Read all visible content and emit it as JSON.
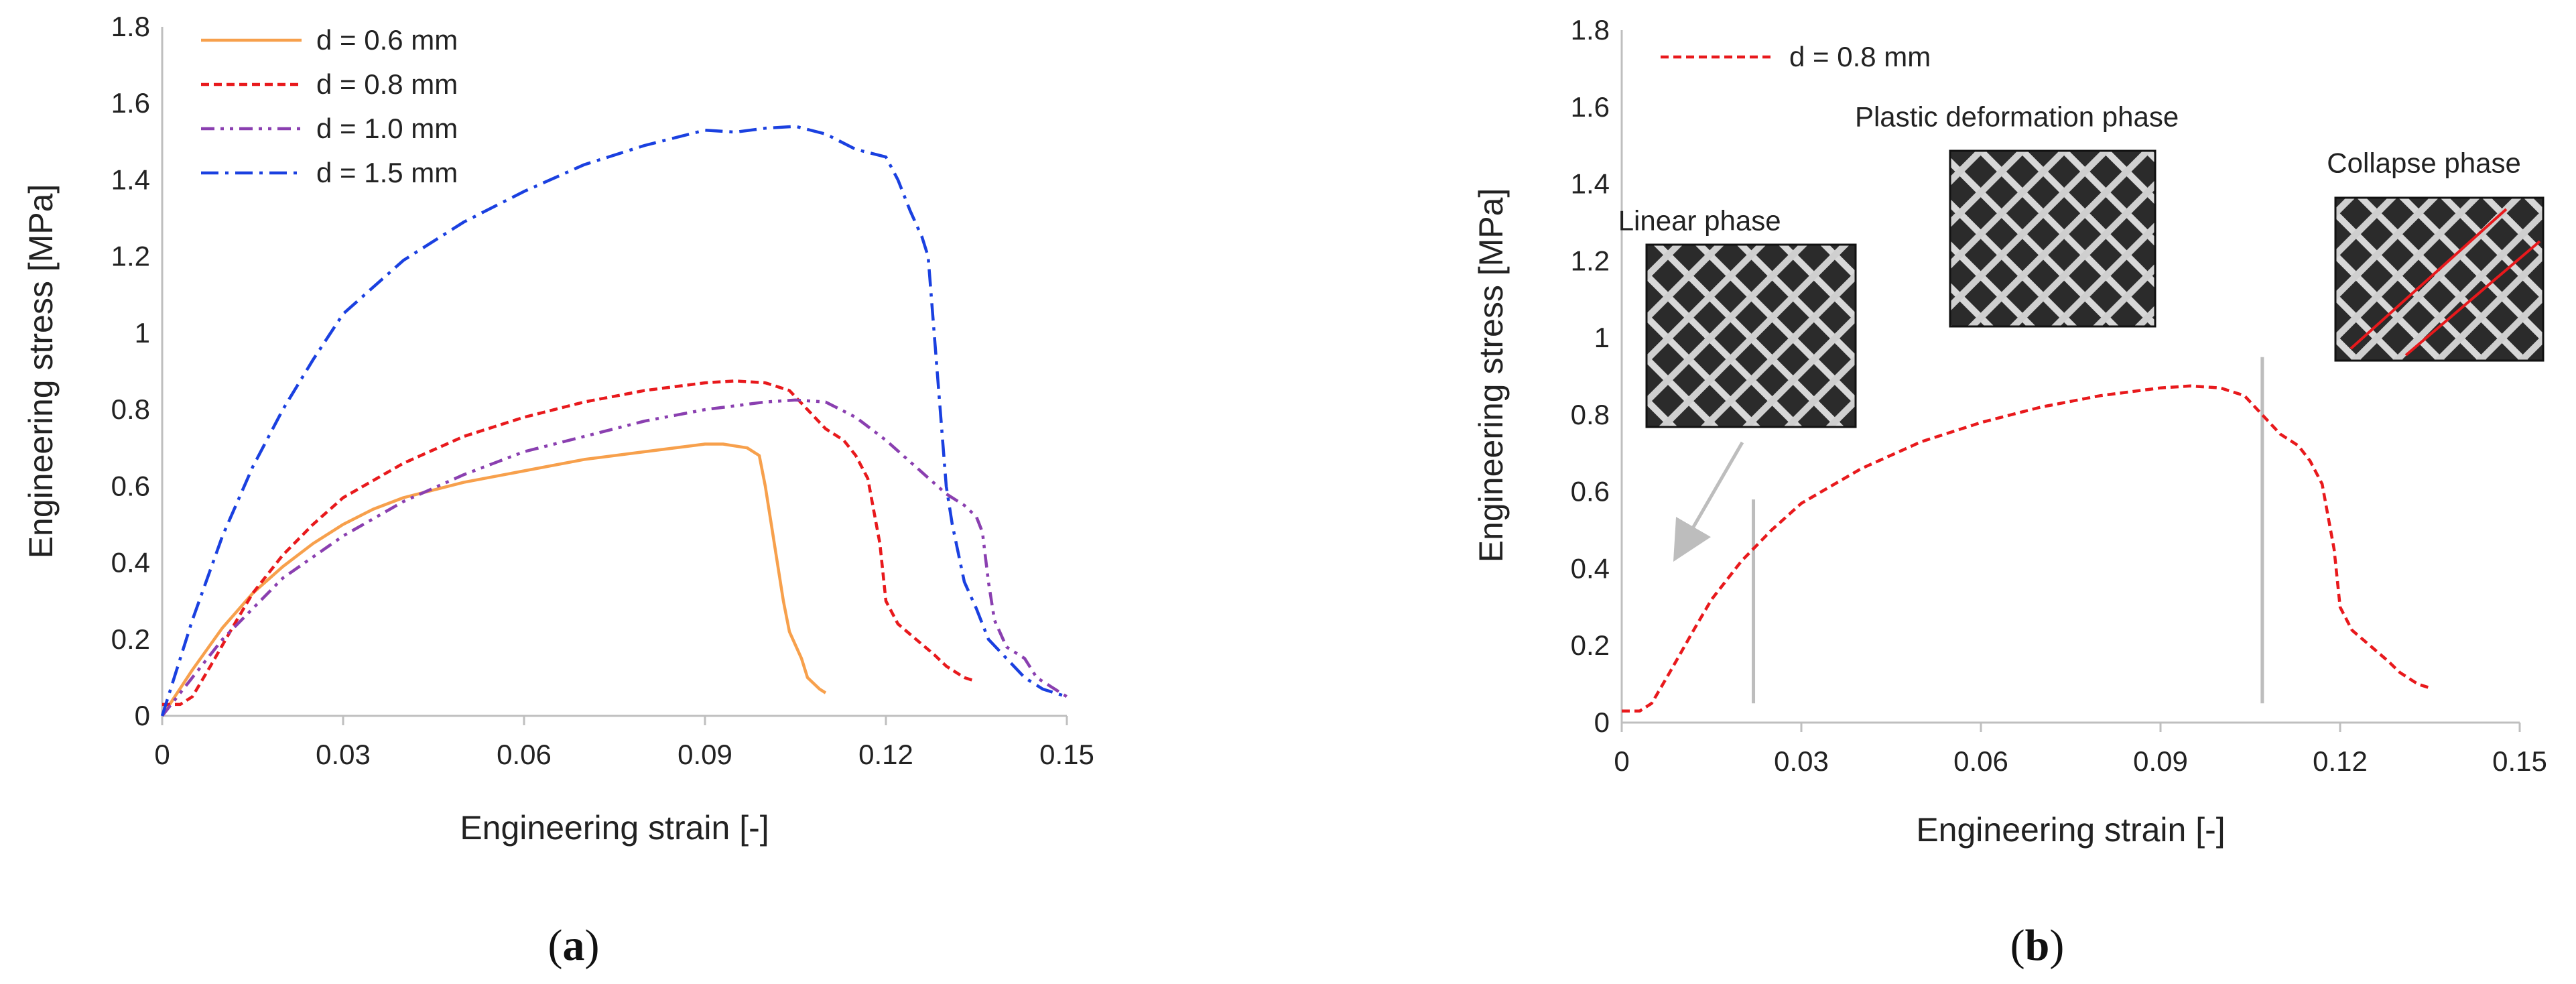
{
  "chart_data": [
    {
      "panel": "(a)",
      "panel_letter": "a",
      "type": "line",
      "xlabel": "Engineering strain [-]",
      "ylabel": "Engineering stress [MPa]",
      "xlim": [
        0,
        0.15
      ],
      "ylim": [
        0,
        1.8
      ],
      "xticks": [
        "0",
        "0.03",
        "0.06",
        "0.09",
        "0.12",
        "0.15"
      ],
      "yticks": [
        "0",
        "0.2",
        "0.4",
        "0.6",
        "0.8",
        "1",
        "1.2",
        "1.4",
        "1.6",
        "1.8"
      ],
      "legend_position": "top-left",
      "series": [
        {
          "name": "d = 0.6 mm",
          "color": "#f7a04c",
          "style": "solid",
          "x": [
            0,
            0.005,
            0.01,
            0.015,
            0.02,
            0.025,
            0.03,
            0.035,
            0.04,
            0.05,
            0.06,
            0.07,
            0.08,
            0.09,
            0.093,
            0.097,
            0.099,
            0.1,
            0.101,
            0.102,
            0.103,
            0.104,
            0.106,
            0.107,
            0.109,
            0.11
          ],
          "y": [
            0,
            0.12,
            0.23,
            0.32,
            0.39,
            0.45,
            0.5,
            0.54,
            0.57,
            0.61,
            0.64,
            0.67,
            0.69,
            0.71,
            0.71,
            0.7,
            0.68,
            0.6,
            0.5,
            0.4,
            0.3,
            0.22,
            0.15,
            0.1,
            0.07,
            0.06
          ]
        },
        {
          "name": "d = 0.8 mm",
          "color": "#e8191c",
          "style": "dashed",
          "x": [
            0,
            0.003,
            0.005,
            0.008,
            0.012,
            0.015,
            0.02,
            0.025,
            0.03,
            0.04,
            0.05,
            0.06,
            0.07,
            0.08,
            0.09,
            0.095,
            0.1,
            0.104,
            0.107,
            0.11,
            0.113,
            0.115,
            0.117,
            0.119,
            0.12,
            0.122,
            0.125,
            0.128,
            0.13,
            0.133,
            0.135
          ],
          "y": [
            0.03,
            0.03,
            0.05,
            0.13,
            0.24,
            0.32,
            0.42,
            0.5,
            0.57,
            0.66,
            0.73,
            0.78,
            0.82,
            0.85,
            0.87,
            0.875,
            0.87,
            0.85,
            0.8,
            0.75,
            0.72,
            0.68,
            0.62,
            0.45,
            0.3,
            0.24,
            0.2,
            0.16,
            0.13,
            0.1,
            0.09
          ]
        },
        {
          "name": "d = 1.0 mm",
          "color": "#8a3fb0",
          "style": "dashdotdot",
          "x": [
            0,
            0.005,
            0.01,
            0.015,
            0.02,
            0.03,
            0.04,
            0.05,
            0.06,
            0.07,
            0.08,
            0.09,
            0.1,
            0.105,
            0.11,
            0.115,
            0.12,
            0.125,
            0.13,
            0.133,
            0.135,
            0.136,
            0.137,
            0.138,
            0.14,
            0.143,
            0.145,
            0.148,
            0.15
          ],
          "y": [
            0,
            0.1,
            0.2,
            0.28,
            0.36,
            0.47,
            0.56,
            0.63,
            0.69,
            0.73,
            0.77,
            0.8,
            0.82,
            0.825,
            0.82,
            0.78,
            0.72,
            0.65,
            0.58,
            0.55,
            0.52,
            0.48,
            0.35,
            0.25,
            0.18,
            0.15,
            0.1,
            0.07,
            0.05
          ]
        },
        {
          "name": "d = 1.5 mm",
          "color": "#1a40e0",
          "style": "dashdot",
          "x": [
            0,
            0.005,
            0.01,
            0.015,
            0.02,
            0.025,
            0.03,
            0.04,
            0.05,
            0.06,
            0.07,
            0.08,
            0.09,
            0.095,
            0.1,
            0.105,
            0.11,
            0.115,
            0.12,
            0.122,
            0.124,
            0.126,
            0.127,
            0.128,
            0.129,
            0.13,
            0.131,
            0.133,
            0.135,
            0.137,
            0.14,
            0.143,
            0.146,
            0.148,
            0.15
          ],
          "y": [
            0,
            0.25,
            0.47,
            0.65,
            0.8,
            0.93,
            1.05,
            1.19,
            1.29,
            1.37,
            1.44,
            1.49,
            1.53,
            1.525,
            1.535,
            1.54,
            1.52,
            1.48,
            1.46,
            1.4,
            1.32,
            1.25,
            1.2,
            1.0,
            0.8,
            0.6,
            0.5,
            0.35,
            0.28,
            0.2,
            0.15,
            0.1,
            0.07,
            0.06,
            0.05
          ]
        }
      ]
    },
    {
      "panel": "(b)",
      "panel_letter": "b",
      "type": "line",
      "xlabel": "Engineering strain [-]",
      "ylabel": "Engineering stress [MPa]",
      "xlim": [
        0,
        0.15
      ],
      "ylim": [
        0,
        1.8
      ],
      "xticks": [
        "0",
        "0.03",
        "0.06",
        "0.09",
        "0.12",
        "0.15"
      ],
      "yticks": [
        "0",
        "0.2",
        "0.4",
        "0.6",
        "0.8",
        "1",
        "1.2",
        "1.4",
        "1.6",
        "1.8"
      ],
      "legend_position": "top-left",
      "series": [
        {
          "name": "d = 0.8 mm",
          "color": "#e8191c",
          "style": "dashed",
          "x": [
            0,
            0.003,
            0.005,
            0.008,
            0.012,
            0.015,
            0.02,
            0.025,
            0.03,
            0.04,
            0.05,
            0.06,
            0.07,
            0.08,
            0.09,
            0.095,
            0.1,
            0.104,
            0.107,
            0.11,
            0.113,
            0.115,
            0.117,
            0.119,
            0.12,
            0.122,
            0.125,
            0.128,
            0.13,
            0.133,
            0.135
          ],
          "y": [
            0.03,
            0.03,
            0.05,
            0.13,
            0.24,
            0.32,
            0.42,
            0.5,
            0.57,
            0.66,
            0.73,
            0.78,
            0.82,
            0.85,
            0.87,
            0.875,
            0.87,
            0.85,
            0.8,
            0.75,
            0.72,
            0.68,
            0.62,
            0.45,
            0.3,
            0.24,
            0.2,
            0.16,
            0.13,
            0.1,
            0.09
          ]
        }
      ],
      "phase_boundaries": [
        {
          "x": 0.022,
          "y_range": [
            0.05,
            0.58
          ]
        },
        {
          "x": 0.107,
          "y_range": [
            0.05,
            0.95
          ]
        }
      ],
      "annotations": [
        {
          "text": "Linear phase",
          "x": 0.013,
          "y": 1.28
        },
        {
          "text": "Plastic deformation phase",
          "x": 0.066,
          "y": 1.55
        },
        {
          "text": "Collapse phase",
          "x": 0.134,
          "y": 1.43
        }
      ]
    }
  ]
}
